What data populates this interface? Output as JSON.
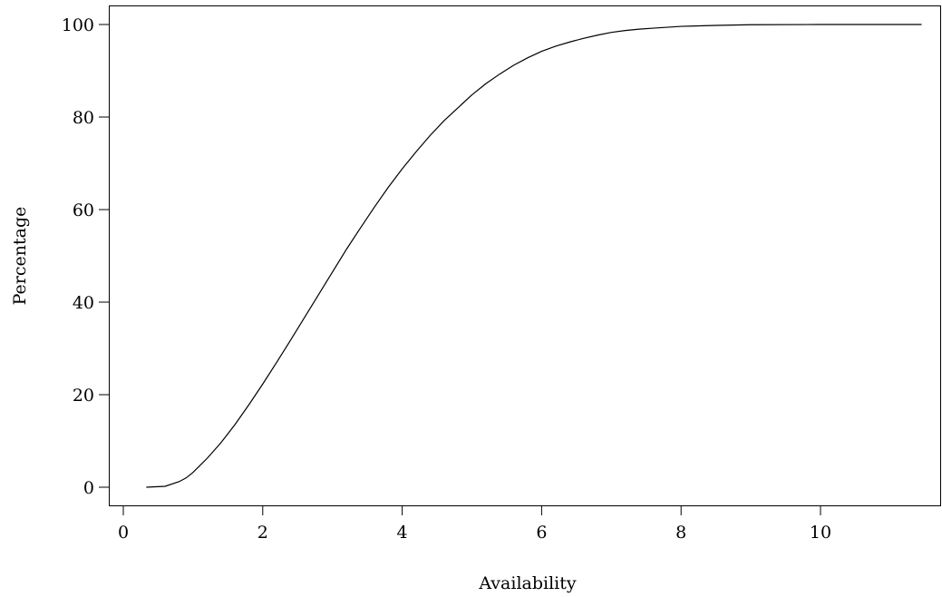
{
  "chart_data": {
    "type": "line",
    "title": "",
    "xlabel": "Availability",
    "ylabel": "Percentage",
    "xlim": [
      -0.2,
      11.9
    ],
    "ylim": [
      -5,
      105
    ],
    "x_ticks": [
      0,
      2,
      4,
      6,
      8,
      10
    ],
    "x_tick_labels": [
      "0",
      "2",
      "4",
      "6",
      "8",
      "10"
    ],
    "y_ticks": [
      0,
      20,
      40,
      60,
      80,
      100
    ],
    "y_tick_labels": [
      "0",
      "20",
      "40",
      "60",
      "80",
      "100"
    ],
    "grid": false,
    "legend": "none",
    "series": [
      {
        "x": [
          0.33,
          0.6,
          0.8,
          0.9,
          1.0,
          1.2,
          1.4,
          1.6,
          1.8,
          2.0,
          2.2,
          2.4,
          2.6,
          2.8,
          3.0,
          3.2,
          3.4,
          3.6,
          3.8,
          4.0,
          4.2,
          4.4,
          4.6,
          4.8,
          5.0,
          5.2,
          5.4,
          5.6,
          5.8,
          6.0,
          6.2,
          6.4,
          6.6,
          6.8,
          7.0,
          7.2,
          7.4,
          7.6,
          7.8,
          8.0,
          8.5,
          9.0,
          10.0,
          11.45
        ],
        "y": [
          0.0,
          0.2,
          1.2,
          2.0,
          3.2,
          6.2,
          9.6,
          13.5,
          17.8,
          22.3,
          27.0,
          31.8,
          36.7,
          41.6,
          46.5,
          51.4,
          56.0,
          60.5,
          64.8,
          68.8,
          72.5,
          76.0,
          79.2,
          82.0,
          84.8,
          87.2,
          89.3,
          91.2,
          92.8,
          94.2,
          95.3,
          96.2,
          97.0,
          97.7,
          98.3,
          98.7,
          99.0,
          99.2,
          99.4,
          99.6,
          99.8,
          99.95,
          100.0,
          100.0
        ]
      }
    ]
  }
}
